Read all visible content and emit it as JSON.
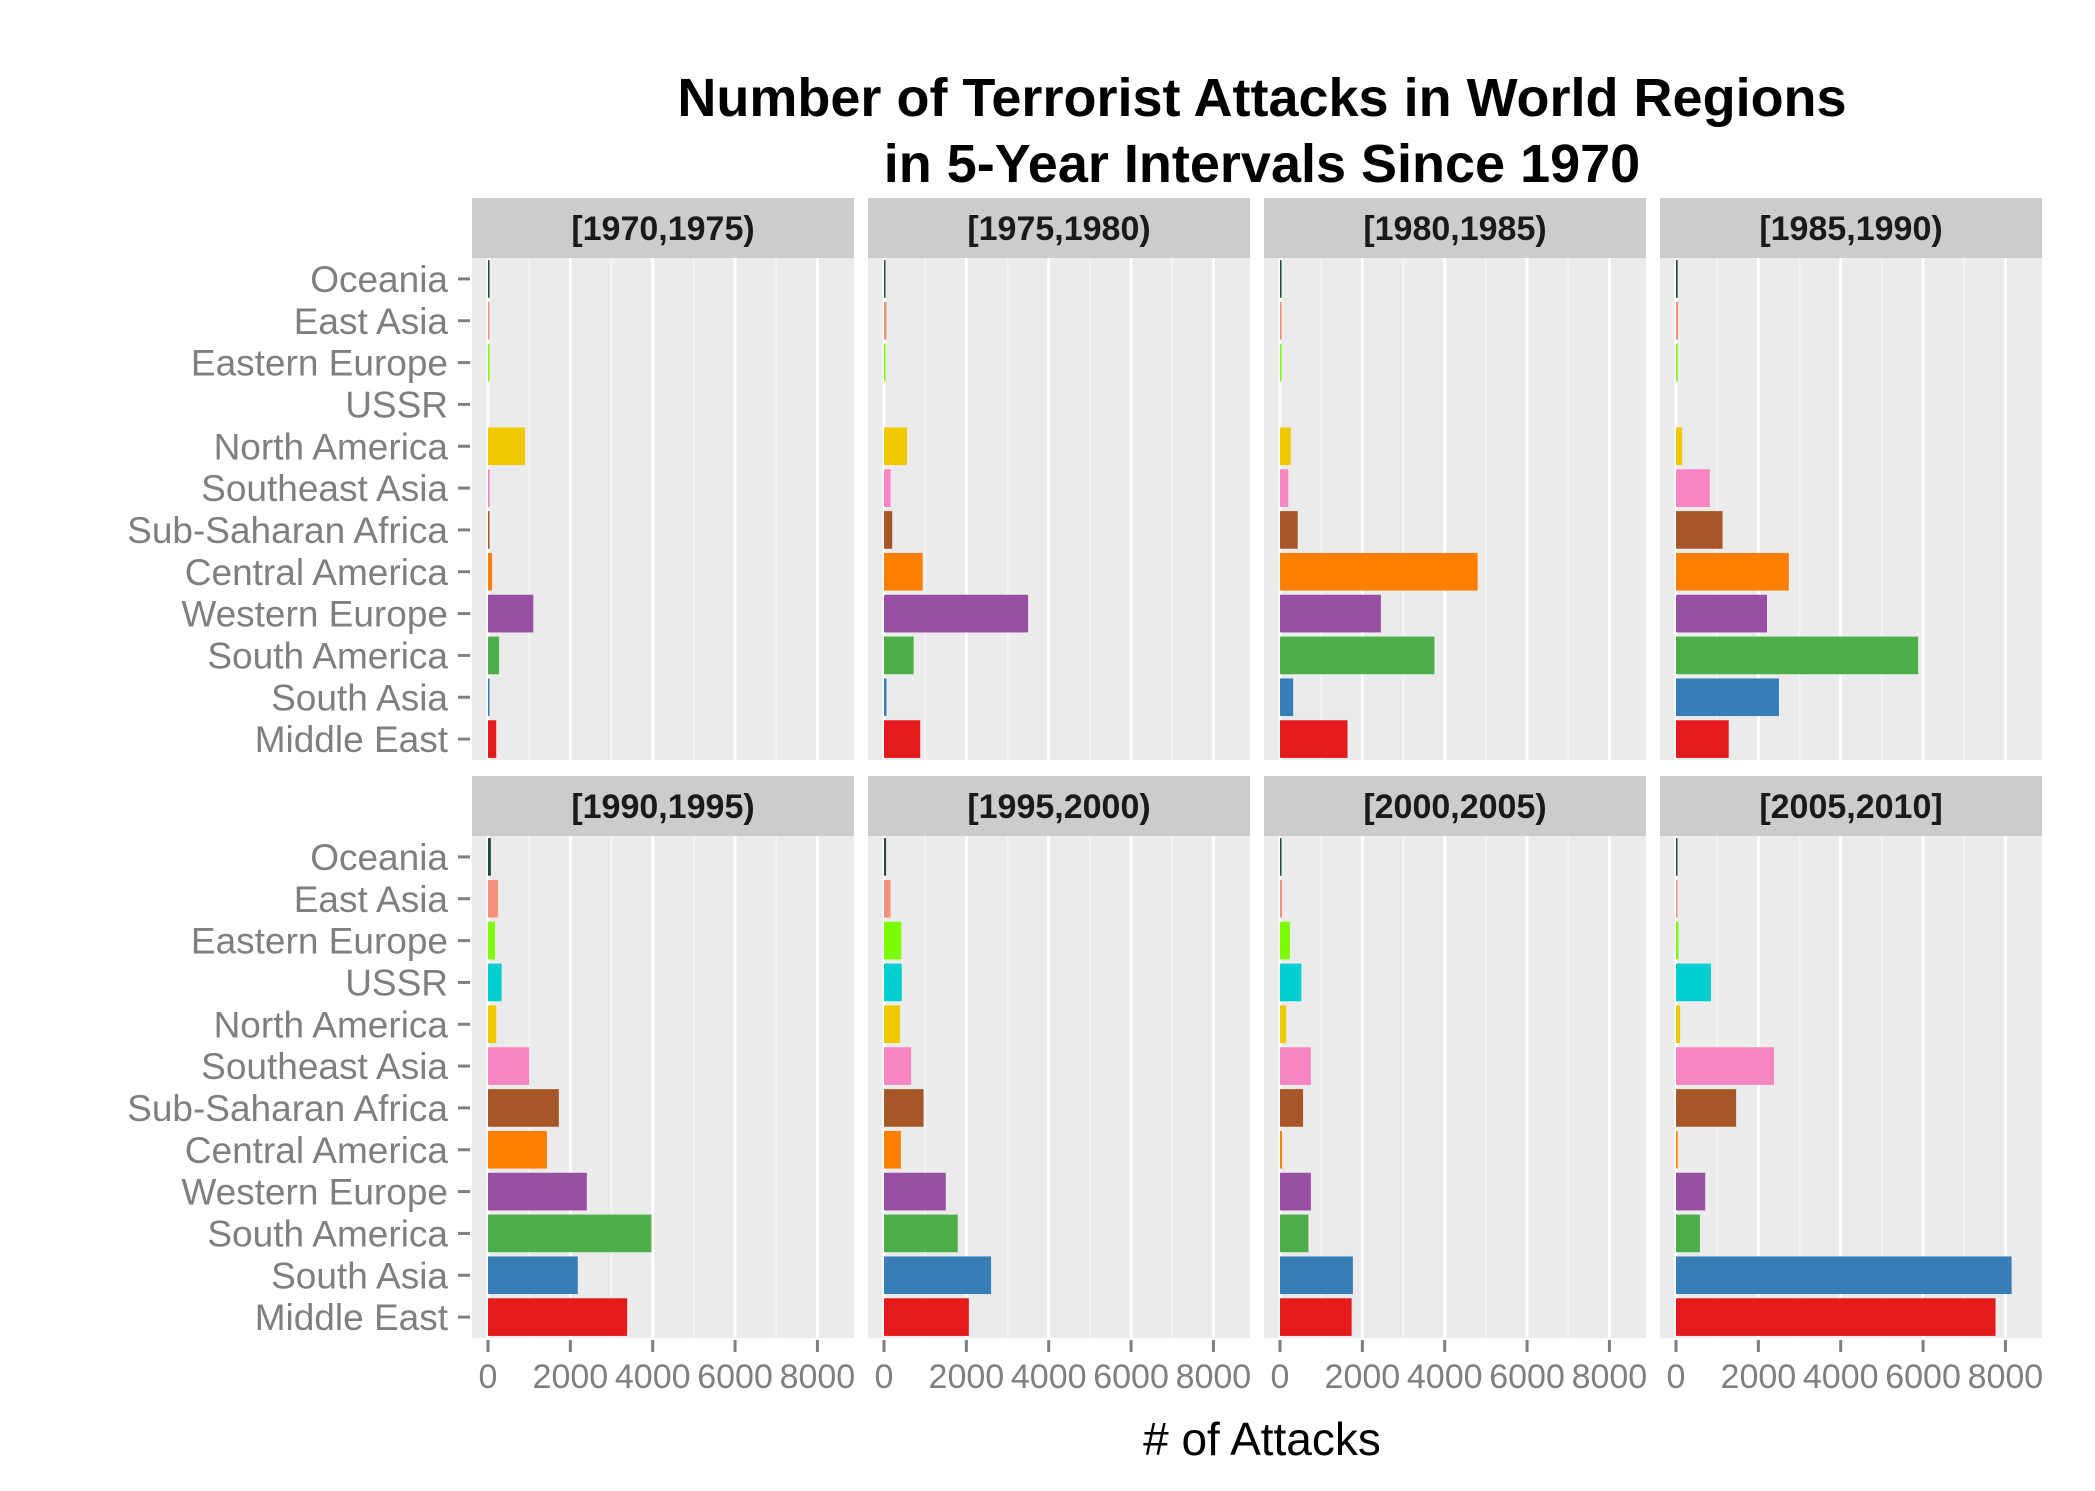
{
  "chart_data": {
    "type": "bar",
    "orientation": "horizontal",
    "title_lines": [
      "Number of Terrorist Attacks in World Regions",
      "in 5-Year Intervals Since 1970"
    ],
    "xlabel": "# of Attacks",
    "ylabel": "",
    "xlim": [
      0,
      8500
    ],
    "x_ticks": [
      0,
      2000,
      4000,
      6000,
      8000
    ],
    "x_tick_labels": [
      "0",
      "2000",
      "4000",
      "6000",
      "8000"
    ],
    "categories": [
      "Oceania",
      "East Asia",
      "Eastern Europe",
      "USSR",
      "North America",
      "Southeast Asia",
      "Sub-Saharan Africa",
      "Central America",
      "Western Europe",
      "South America",
      "South Asia",
      "Middle East"
    ],
    "colors": {
      "Oceania": "#1f4a40",
      "East Asia": "#f4917a",
      "Eastern Europe": "#7cfc00",
      "USSR": "#00ced1",
      "North America": "#f0c800",
      "Southeast Asia": "#f785c1",
      "Sub-Saharan Africa": "#a65628",
      "Central America": "#ff7f00",
      "Western Europe": "#984ea3",
      "South America": "#4daf4a",
      "South Asia": "#377eb8",
      "Middle East": "#e41a1c"
    },
    "grid": true,
    "legend": "none",
    "panels": [
      {
        "label": "[1970,1975)",
        "values": [
          30,
          30,
          20,
          0,
          900,
          40,
          30,
          100,
          1100,
          270,
          30,
          200
        ]
      },
      {
        "label": "[1975,1980)",
        "values": [
          20,
          60,
          20,
          0,
          560,
          160,
          200,
          940,
          3500,
          720,
          60,
          880
        ]
      },
      {
        "label": "[1980,1985)",
        "values": [
          20,
          40,
          30,
          0,
          260,
          200,
          430,
          4800,
          2450,
          3750,
          320,
          1640
        ]
      },
      {
        "label": "[1985,1990)",
        "values": [
          40,
          50,
          40,
          0,
          150,
          820,
          1130,
          2740,
          2210,
          5880,
          2500,
          1280
        ]
      },
      {
        "label": "[1990,1995)",
        "values": [
          70,
          240,
          170,
          330,
          200,
          1000,
          1720,
          1430,
          2400,
          3970,
          2180,
          3380
        ]
      },
      {
        "label": "[1995,2000)",
        "values": [
          50,
          160,
          420,
          430,
          390,
          660,
          960,
          410,
          1500,
          1790,
          2600,
          2060
        ]
      },
      {
        "label": "[2000,2005)",
        "values": [
          30,
          50,
          240,
          520,
          150,
          750,
          560,
          50,
          750,
          690,
          1770,
          1740
        ]
      },
      {
        "label": "[2005,2010]",
        "values": [
          20,
          30,
          60,
          850,
          100,
          2380,
          1460,
          40,
          710,
          580,
          8150,
          7760
        ]
      }
    ]
  }
}
